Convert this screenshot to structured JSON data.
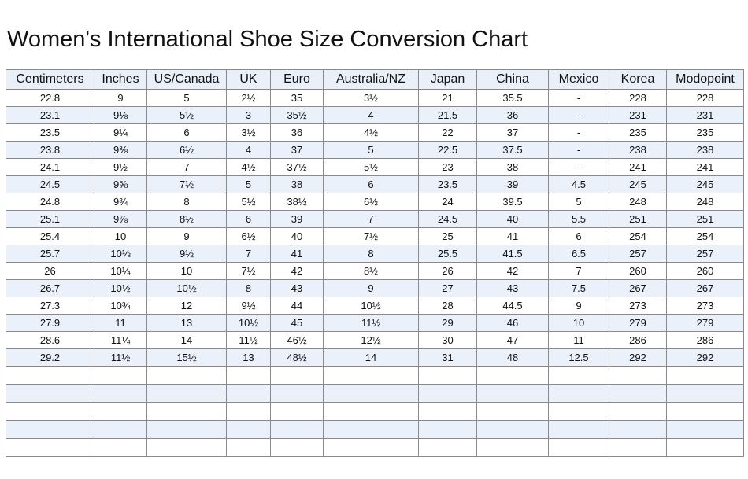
{
  "title": "Women's International Shoe Size Conversion Chart",
  "table": {
    "headers": [
      "Centimeters",
      "Inches",
      "US/Canada",
      "UK",
      "Euro",
      "Australia/NZ",
      "Japan",
      "China",
      "Mexico",
      "Korea",
      "Modopoint"
    ],
    "rows": [
      [
        "22.8",
        "9",
        "5",
        "2½",
        "35",
        "3½",
        "21",
        "35.5",
        "-",
        "228",
        "228"
      ],
      [
        "23.1",
        "9⅛",
        "5½",
        "3",
        "35½",
        "4",
        "21.5",
        "36",
        "-",
        "231",
        "231"
      ],
      [
        "23.5",
        "9¼",
        "6",
        "3½",
        "36",
        "4½",
        "22",
        "37",
        "-",
        "235",
        "235"
      ],
      [
        "23.8",
        "9⅜",
        "6½",
        "4",
        "37",
        "5",
        "22.5",
        "37.5",
        "-",
        "238",
        "238"
      ],
      [
        "24.1",
        "9½",
        "7",
        "4½",
        "37½",
        "5½",
        "23",
        "38",
        "-",
        "241",
        "241"
      ],
      [
        "24.5",
        "9⅝",
        "7½",
        "5",
        "38",
        "6",
        "23.5",
        "39",
        "4.5",
        "245",
        "245"
      ],
      [
        "24.8",
        "9¾",
        "8",
        "5½",
        "38½",
        "6½",
        "24",
        "39.5",
        "5",
        "248",
        "248"
      ],
      [
        "25.1",
        "9⅞",
        "8½",
        "6",
        "39",
        "7",
        "24.5",
        "40",
        "5.5",
        "251",
        "251"
      ],
      [
        "25.4",
        "10",
        "9",
        "6½",
        "40",
        "7½",
        "25",
        "41",
        "6",
        "254",
        "254"
      ],
      [
        "25.7",
        "10⅛",
        "9½",
        "7",
        "41",
        "8",
        "25.5",
        "41.5",
        "6.5",
        "257",
        "257"
      ],
      [
        "26",
        "10¼",
        "10",
        "7½",
        "42",
        "8½",
        "26",
        "42",
        "7",
        "260",
        "260"
      ],
      [
        "26.7",
        "10½",
        "10½",
        "8",
        "43",
        "9",
        "27",
        "43",
        "7.5",
        "267",
        "267"
      ],
      [
        "27.3",
        "10¾",
        "12",
        "9½",
        "44",
        "10½",
        "28",
        "44.5",
        "9",
        "273",
        "273"
      ],
      [
        "27.9",
        "11",
        "13",
        "10½",
        "45",
        "11½",
        "29",
        "46",
        "10",
        "279",
        "279"
      ],
      [
        "28.6",
        "11¼",
        "14",
        "11½",
        "46½",
        "12½",
        "30",
        "47",
        "11",
        "286",
        "286"
      ],
      [
        "29.2",
        "11½",
        "15½",
        "13",
        "48½",
        "14",
        "31",
        "48",
        "12.5",
        "292",
        "292"
      ]
    ]
  }
}
